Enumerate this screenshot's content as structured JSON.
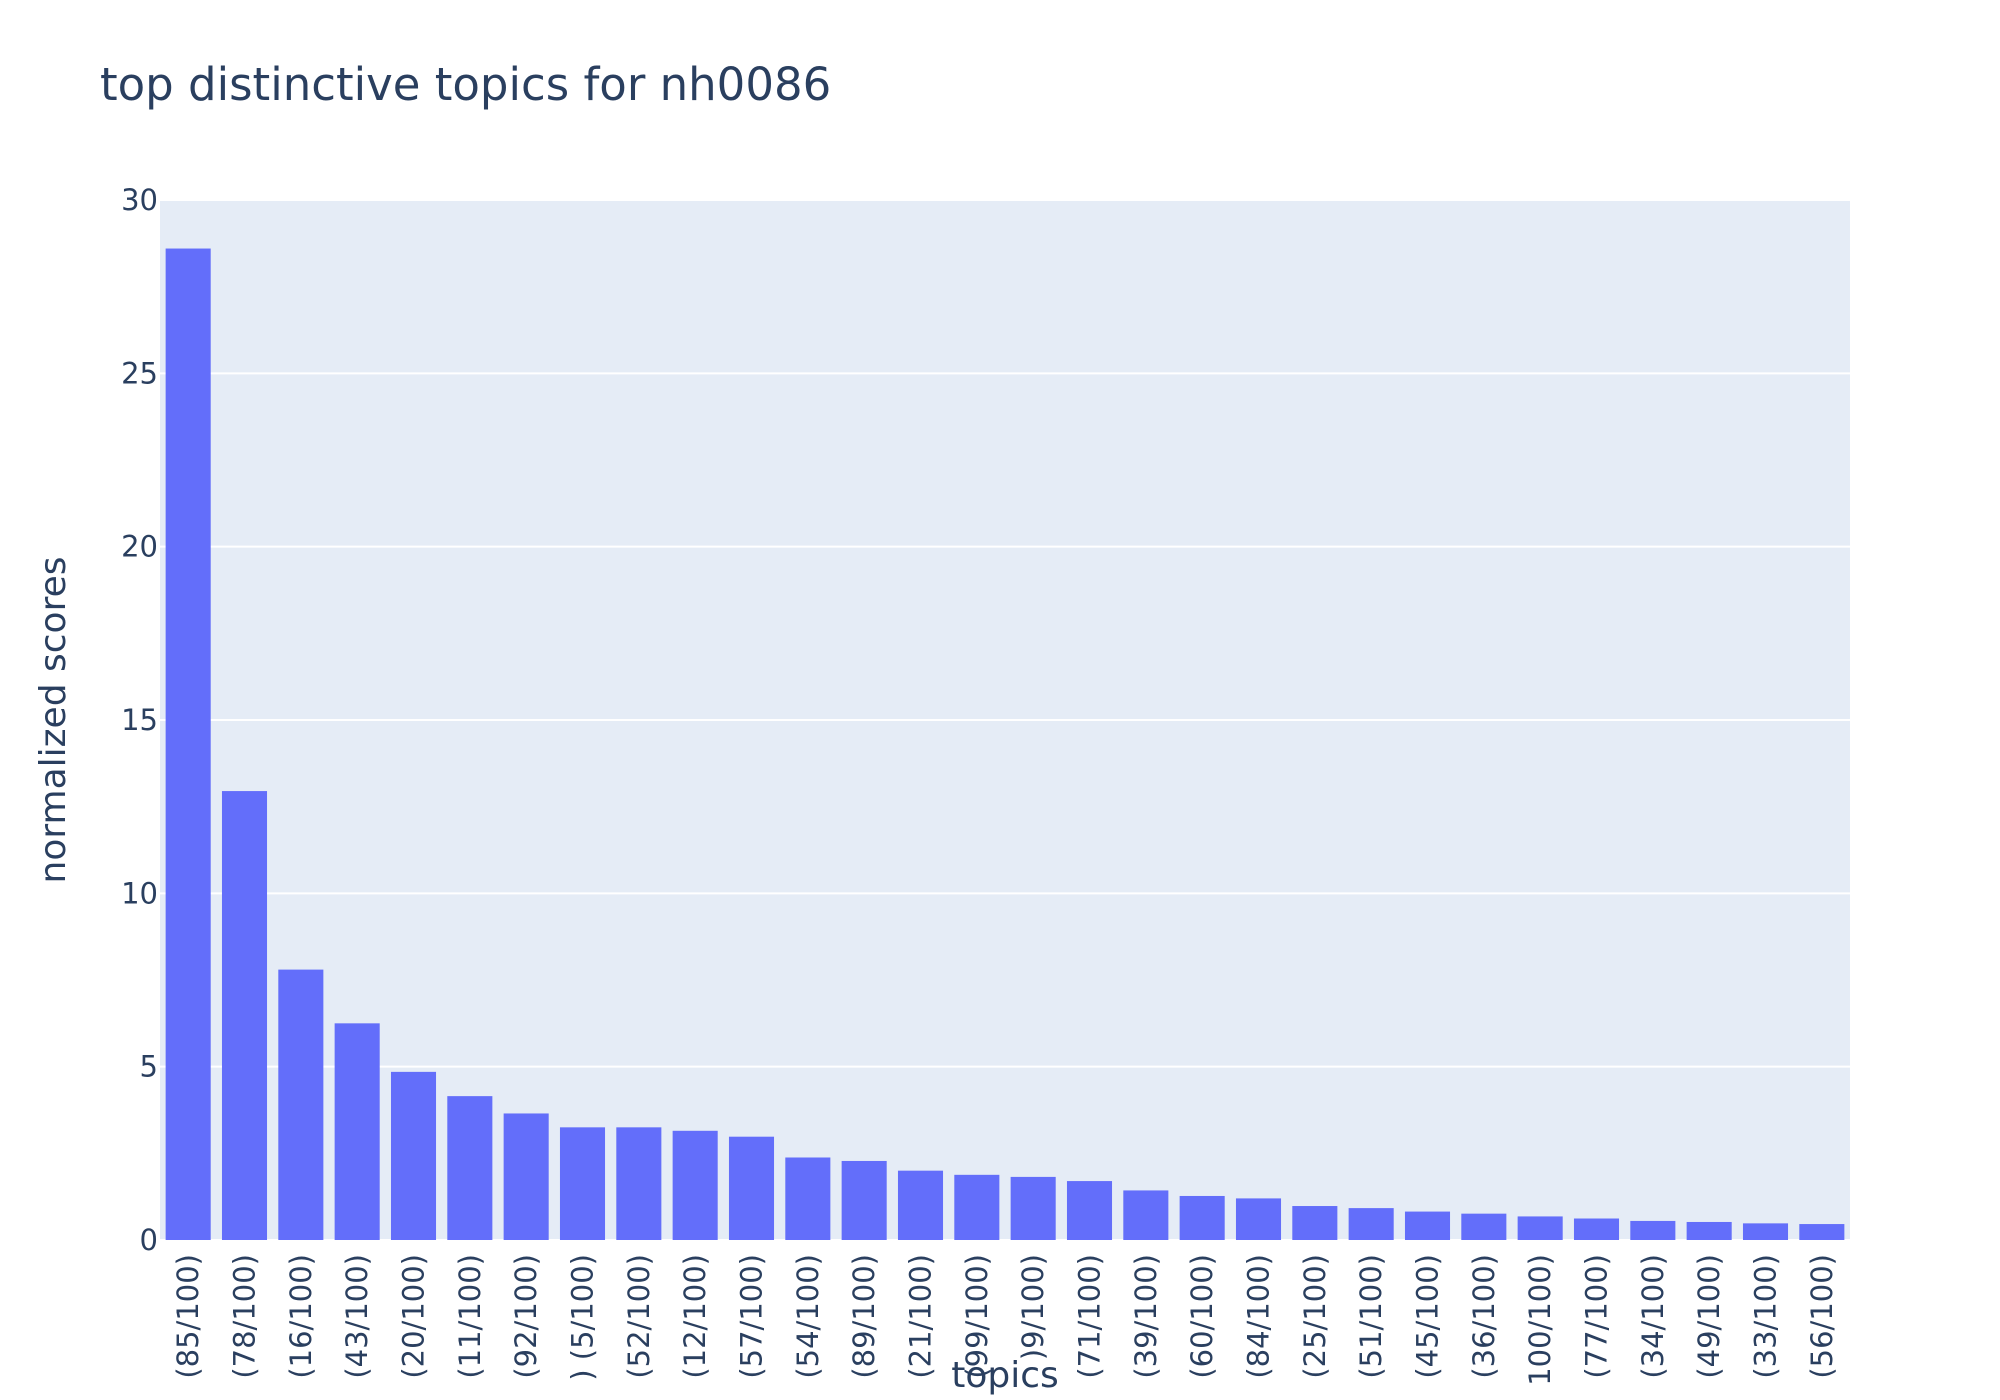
{
  "chart_data": {
    "type": "bar",
    "title": "top distinctive topics for nh0086",
    "xlabel": "topics",
    "ylabel": "normalized scores",
    "ylim": [
      0,
      30
    ],
    "yticks": [
      "0",
      "5",
      "10",
      "15",
      "20",
      "25",
      "30"
    ],
    "grid": true,
    "bar_color": "#636efa",
    "plot_bg": "#e5ecf6",
    "categories": [
      "(85/100)",
      "(78/100)",
      "(16/100)",
      "(43/100)",
      "(20/100)",
      "(11/100)",
      "(92/100)",
      ") (5/100)",
      "(52/100)",
      "(12/100)",
      "(57/100)",
      "(54/100)",
      "(89/100)",
      "(21/100)",
      "(99/100)",
      ")9/100)",
      "(71/100)",
      "(39/100)",
      "(60/100)",
      "(84/100)",
      "(25/100)",
      "(51/100)",
      "(45/100)",
      "(36/100)",
      "100/100)",
      "(77/100)",
      "(34/100)",
      "(49/100)",
      "(33/100)",
      "(56/100)"
    ],
    "values": [
      28.6,
      12.95,
      7.8,
      6.25,
      4.85,
      4.15,
      3.65,
      3.25,
      3.25,
      3.15,
      2.98,
      2.38,
      2.28,
      2.0,
      1.88,
      1.82,
      1.7,
      1.43,
      1.27,
      1.2,
      0.98,
      0.92,
      0.82,
      0.76,
      0.68,
      0.62,
      0.55,
      0.52,
      0.48,
      0.46
    ]
  }
}
